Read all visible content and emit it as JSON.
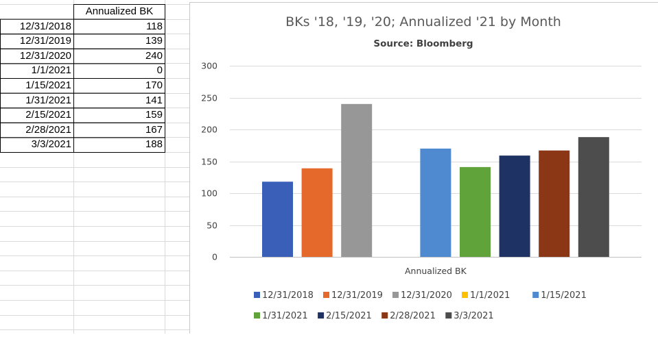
{
  "table": {
    "header": "Annualized BK",
    "rows": [
      {
        "date": "12/31/2018",
        "value": "118"
      },
      {
        "date": "12/31/2019",
        "value": "139"
      },
      {
        "date": "12/31/2020",
        "value": "240"
      },
      {
        "date": "1/1/2021",
        "value": "0"
      },
      {
        "date": "1/15/2021",
        "value": "170"
      },
      {
        "date": "1/31/2021",
        "value": "141"
      },
      {
        "date": "2/15/2021",
        "value": "159"
      },
      {
        "date": "2/28/2021",
        "value": "167"
      },
      {
        "date": "3/3/2021",
        "value": "188"
      }
    ]
  },
  "chart_data": {
    "type": "bar",
    "title": "BKs '18, '19, '20; Annualized '21 by Month",
    "subtitle": "Source: Bloomberg",
    "xlabel": "Annualized BK",
    "ylabel": "",
    "ylim": [
      0,
      300
    ],
    "yticks": [
      0,
      50,
      100,
      150,
      200,
      250,
      300
    ],
    "categories": [
      "Annualized BK"
    ],
    "series": [
      {
        "name": "12/31/2018",
        "values": [
          118
        ],
        "color": "#3a5fb8"
      },
      {
        "name": "12/31/2019",
        "values": [
          139
        ],
        "color": "#e5692a"
      },
      {
        "name": "12/31/2020",
        "values": [
          240
        ],
        "color": "#979797"
      },
      {
        "name": "1/1/2021",
        "values": [
          0
        ],
        "color": "#ffc000"
      },
      {
        "name": "1/15/2021",
        "values": [
          170
        ],
        "color": "#4f8ad0"
      },
      {
        "name": "1/31/2021",
        "values": [
          141
        ],
        "color": "#5fa33a"
      },
      {
        "name": "2/15/2021",
        "values": [
          159
        ],
        "color": "#1f3264"
      },
      {
        "name": "2/28/2021",
        "values": [
          167
        ],
        "color": "#8b3614"
      },
      {
        "name": "3/3/2021",
        "values": [
          188
        ],
        "color": "#4d4d4d"
      }
    ],
    "grid": true,
    "legend_position": "bottom"
  }
}
